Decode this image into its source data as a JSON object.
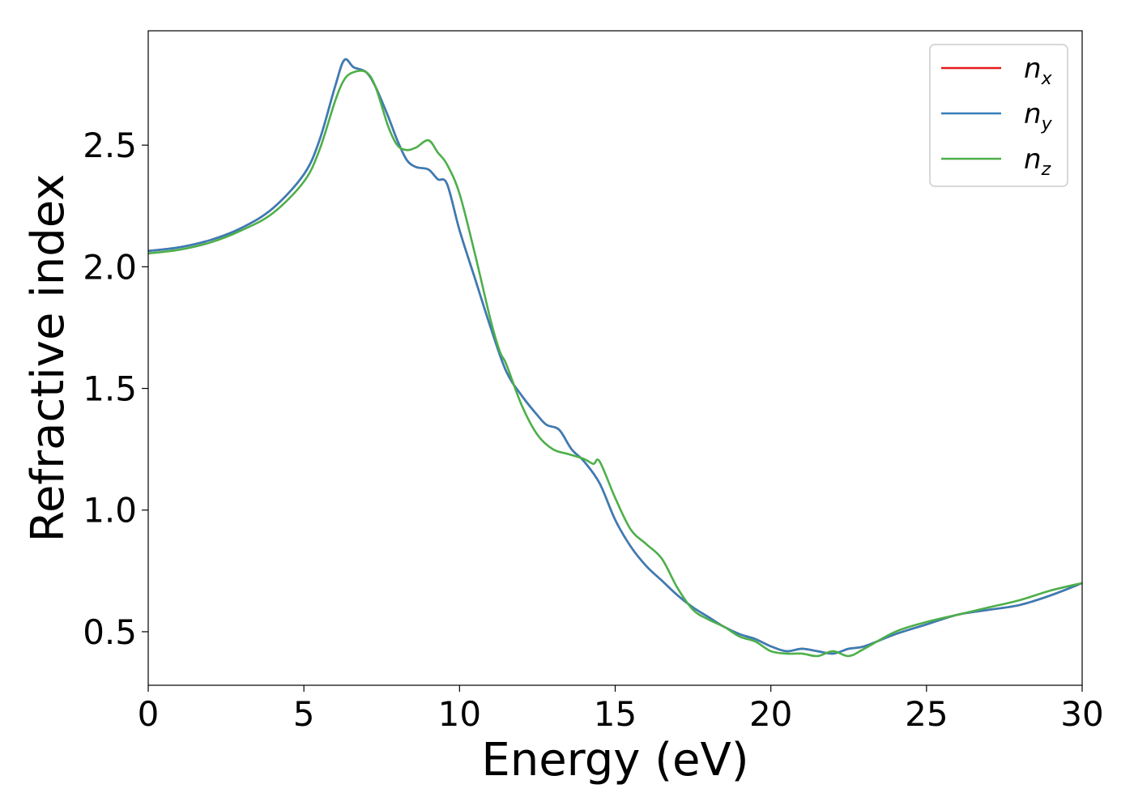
{
  "chart_data": {
    "type": "line",
    "title": "",
    "xlabel": "Energy (eV)",
    "ylabel": "Refractive index",
    "xlim": [
      0,
      30
    ],
    "ylim": [
      0.28,
      2.97
    ],
    "xticks": [
      0,
      5,
      10,
      15,
      20,
      25,
      30
    ],
    "xtick_labels": [
      "0",
      "5",
      "10",
      "15",
      "20",
      "25",
      "30"
    ],
    "yticks": [
      0.5,
      1.0,
      1.5,
      2.0,
      2.5
    ],
    "ytick_labels": [
      "0.5",
      "1.0",
      "1.5",
      "2.0",
      "2.5"
    ],
    "grid": false,
    "legend_position": "top-right",
    "series": [
      {
        "name": "n",
        "subscript": "x",
        "color": "#e41a1c",
        "x": [
          0,
          1,
          2,
          3,
          4,
          5,
          5.5,
          6,
          6.3,
          6.6,
          7,
          7.3,
          7.7,
          8,
          8.3,
          8.6,
          9,
          9.3,
          9.6,
          10,
          10.5,
          11,
          11.5,
          12,
          12.5,
          12.8,
          13.2,
          13.6,
          14,
          14.5,
          15,
          15.5,
          16,
          16.5,
          17,
          17.5,
          18,
          18.5,
          19,
          19.5,
          20,
          20.5,
          21,
          21.5,
          22,
          22.5,
          23,
          24,
          25,
          26,
          27,
          28,
          29,
          30
        ],
        "y": [
          2.065,
          2.08,
          2.11,
          2.16,
          2.24,
          2.38,
          2.52,
          2.74,
          2.85,
          2.82,
          2.8,
          2.74,
          2.62,
          2.52,
          2.44,
          2.41,
          2.4,
          2.36,
          2.34,
          2.15,
          1.95,
          1.75,
          1.57,
          1.47,
          1.39,
          1.35,
          1.33,
          1.25,
          1.2,
          1.11,
          0.96,
          0.85,
          0.77,
          0.71,
          0.65,
          0.6,
          0.56,
          0.52,
          0.49,
          0.47,
          0.44,
          0.42,
          0.43,
          0.42,
          0.41,
          0.43,
          0.44,
          0.49,
          0.53,
          0.57,
          0.59,
          0.61,
          0.65,
          0.7
        ]
      },
      {
        "name": "n",
        "subscript": "y",
        "color": "#377eb8",
        "x": [
          0,
          1,
          2,
          3,
          4,
          5,
          5.5,
          6,
          6.3,
          6.6,
          7,
          7.3,
          7.7,
          8,
          8.3,
          8.6,
          9,
          9.3,
          9.6,
          10,
          10.5,
          11,
          11.5,
          12,
          12.5,
          12.8,
          13.2,
          13.6,
          14,
          14.5,
          15,
          15.5,
          16,
          16.5,
          17,
          17.5,
          18,
          18.5,
          19,
          19.5,
          20,
          20.5,
          21,
          21.5,
          22,
          22.5,
          23,
          24,
          25,
          26,
          27,
          28,
          29,
          30
        ],
        "y": [
          2.065,
          2.08,
          2.11,
          2.16,
          2.24,
          2.38,
          2.52,
          2.74,
          2.85,
          2.82,
          2.8,
          2.74,
          2.62,
          2.52,
          2.44,
          2.41,
          2.4,
          2.36,
          2.34,
          2.15,
          1.95,
          1.75,
          1.57,
          1.47,
          1.39,
          1.35,
          1.33,
          1.25,
          1.2,
          1.11,
          0.96,
          0.85,
          0.77,
          0.71,
          0.65,
          0.6,
          0.56,
          0.52,
          0.49,
          0.47,
          0.44,
          0.42,
          0.43,
          0.42,
          0.41,
          0.43,
          0.44,
          0.49,
          0.53,
          0.57,
          0.59,
          0.61,
          0.65,
          0.7
        ]
      },
      {
        "name": "n",
        "subscript": "z",
        "color": "#4daf4a",
        "x": [
          0,
          1,
          2,
          3,
          4,
          5,
          5.5,
          6,
          6.3,
          6.6,
          7,
          7.3,
          7.7,
          8,
          8.3,
          8.6,
          9,
          9.3,
          9.6,
          10,
          10.5,
          11,
          11.3,
          11.5,
          12,
          12.5,
          13,
          13.5,
          14,
          14.3,
          14.5,
          15,
          15.5,
          16,
          16.5,
          17,
          17.5,
          18,
          18.5,
          19,
          19.5,
          20,
          20.5,
          21,
          21.5,
          22,
          22.5,
          23,
          24,
          25,
          26,
          27,
          28,
          29,
          30
        ],
        "y": [
          2.055,
          2.07,
          2.1,
          2.15,
          2.22,
          2.35,
          2.48,
          2.68,
          2.77,
          2.8,
          2.8,
          2.74,
          2.58,
          2.5,
          2.48,
          2.49,
          2.52,
          2.47,
          2.42,
          2.3,
          2.05,
          1.78,
          1.65,
          1.6,
          1.43,
          1.31,
          1.25,
          1.23,
          1.21,
          1.19,
          1.2,
          1.05,
          0.92,
          0.86,
          0.8,
          0.68,
          0.59,
          0.55,
          0.52,
          0.48,
          0.46,
          0.42,
          0.41,
          0.41,
          0.4,
          0.42,
          0.4,
          0.43,
          0.5,
          0.54,
          0.57,
          0.6,
          0.63,
          0.67,
          0.7
        ]
      }
    ]
  }
}
